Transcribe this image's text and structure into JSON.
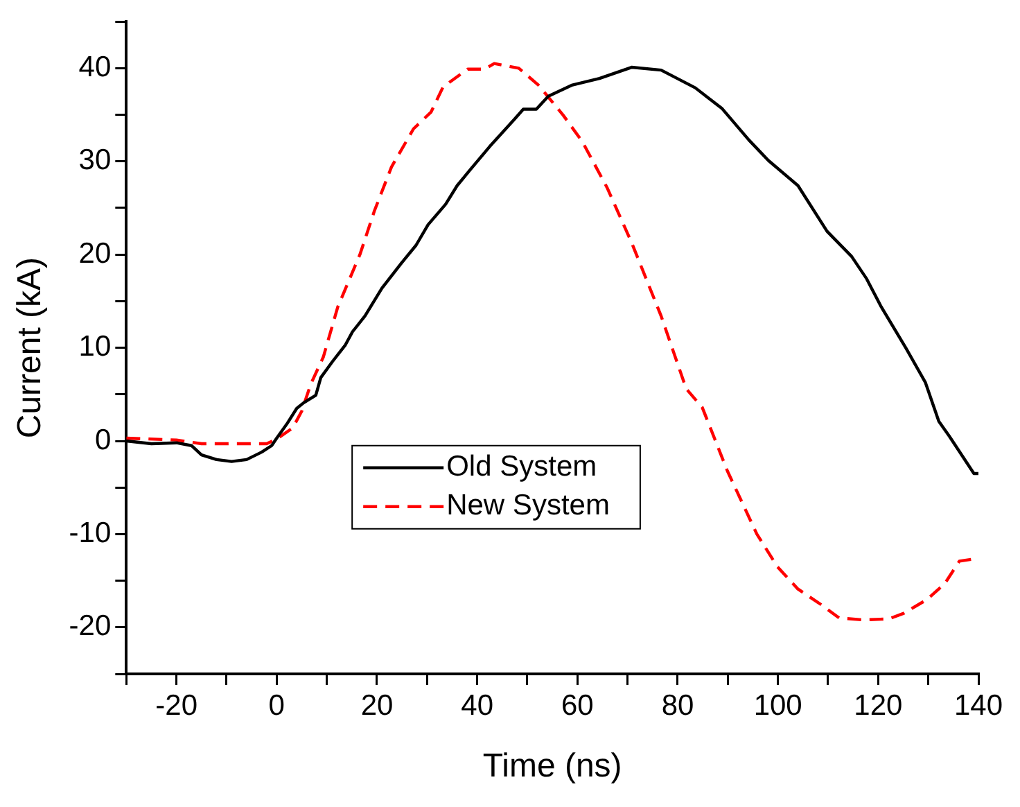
{
  "chart_data": {
    "type": "line",
    "xlabel": "Time (ns)",
    "ylabel": "Current (kA)",
    "xlim": [
      -30,
      140
    ],
    "ylim": [
      -25,
      45
    ],
    "xticks": [
      {
        "value": -30,
        "label": null
      },
      -20,
      {
        "value": -10,
        "label": null
      },
      0,
      {
        "value": 10,
        "label": null
      },
      20,
      {
        "value": 30,
        "label": null
      },
      40,
      {
        "value": 50,
        "label": null
      },
      60,
      {
        "value": 70,
        "label": null
      },
      80,
      {
        "value": 90,
        "label": null
      },
      100,
      {
        "value": 110,
        "label": null
      },
      120,
      {
        "value": 130,
        "label": null
      },
      140
    ],
    "yticks": [
      {
        "value": -25,
        "label": null
      },
      -20,
      {
        "value": -15,
        "label": null
      },
      -10,
      {
        "value": -5,
        "label": null
      },
      0,
      {
        "value": 5,
        "label": null
      },
      10,
      {
        "value": 15,
        "label": null
      },
      20,
      {
        "value": 25,
        "label": null
      },
      30,
      {
        "value": 35,
        "label": null
      },
      40,
      {
        "value": 45,
        "label": null
      }
    ],
    "grid": false,
    "legend": "center",
    "series": [
      {
        "name": "Old System",
        "color": "#000000",
        "line_style": "solid",
        "x": [
          -30,
          -25,
          -20,
          -17,
          -15,
          -12,
          -9,
          -6,
          -3,
          -1,
          0,
          2,
          4,
          5.4,
          7.8,
          8.8,
          11.1,
          13.7,
          15.1,
          17.6,
          21,
          24.9,
          27.8,
          30.2,
          33.7,
          36,
          38.6,
          42.5,
          47.4,
          49.2,
          51.8,
          54.2,
          59,
          64.4,
          70.8,
          76.7,
          83.5,
          88.8,
          94.2,
          98.1,
          104,
          109.8,
          114.7,
          117.7,
          120.6,
          125.5,
          129.4,
          132.1,
          134.2,
          139.1,
          140
        ],
        "values": [
          0,
          -0.3,
          -0.2,
          -0.5,
          -1.5,
          -2,
          -2.2,
          -2,
          -1.2,
          -0.5,
          0.3,
          1.8,
          3.5,
          4.1,
          4.9,
          6.8,
          8.5,
          10.3,
          11.7,
          13.4,
          16.4,
          19.1,
          21,
          23.2,
          25.4,
          27.4,
          29.1,
          31.6,
          34.5,
          35.6,
          35.6,
          37,
          38.2,
          38.9,
          40.1,
          39.8,
          37.9,
          35.7,
          32.3,
          30.1,
          27.4,
          22.5,
          19.8,
          17.4,
          14.4,
          10,
          6.3,
          2.1,
          0.5,
          -3.5,
          -3.5
        ]
      },
      {
        "name": "New System",
        "color": "#ff0000",
        "line_style": "dashed",
        "x": [
          -30,
          -20,
          -15,
          -2,
          0,
          3.2,
          5,
          6.8,
          9.3,
          12.2,
          16.6,
          19.5,
          22.9,
          27.3,
          30.8,
          33.2,
          38.1,
          41.5,
          43.4,
          48.3,
          52.2,
          57.1,
          61,
          65.9,
          70.8,
          76.7,
          81.7,
          84.9,
          89.9,
          95.8,
          99.9,
          104,
          108.7,
          112.2,
          117,
          122.1,
          125.1,
          129.8,
          133.3,
          136.2,
          140
        ],
        "values": [
          0.3,
          0.1,
          -0.3,
          -0.3,
          0.2,
          1.4,
          3.2,
          6.1,
          9,
          14.4,
          20,
          24.7,
          29.4,
          33.5,
          35.3,
          38,
          39.9,
          39.9,
          40.5,
          40,
          38.2,
          35,
          32.1,
          27.2,
          21.3,
          13.4,
          5.6,
          3.6,
          -3.2,
          -10,
          -13.5,
          -15.9,
          -17.6,
          -19,
          -19.2,
          -19.1,
          -18.5,
          -17,
          -15.3,
          -12.9,
          -12.6
        ]
      }
    ]
  }
}
